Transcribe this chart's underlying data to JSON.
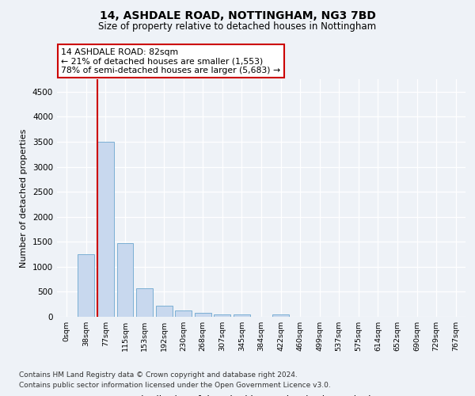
{
  "title": "14, ASHDALE ROAD, NOTTINGHAM, NG3 7BD",
  "subtitle": "Size of property relative to detached houses in Nottingham",
  "xlabel": "Distribution of detached houses by size in Nottingham",
  "ylabel": "Number of detached properties",
  "bar_labels": [
    "0sqm",
    "38sqm",
    "77sqm",
    "115sqm",
    "153sqm",
    "192sqm",
    "230sqm",
    "268sqm",
    "307sqm",
    "345sqm",
    "384sqm",
    "422sqm",
    "460sqm",
    "499sqm",
    "537sqm",
    "575sqm",
    "614sqm",
    "652sqm",
    "690sqm",
    "729sqm",
    "767sqm"
  ],
  "bar_values": [
    5,
    1250,
    3500,
    1470,
    570,
    220,
    120,
    85,
    55,
    40,
    0,
    40,
    0,
    0,
    0,
    0,
    0,
    0,
    0,
    0,
    0
  ],
  "bar_color": "#c8d8ee",
  "bar_edge_color": "#7bafd4",
  "ylim": [
    0,
    4750
  ],
  "yticks": [
    0,
    500,
    1000,
    1500,
    2000,
    2500,
    3000,
    3500,
    4000,
    4500
  ],
  "property_line_bar_index": 2,
  "annotation_text": "14 ASHDALE ROAD: 82sqm\n← 21% of detached houses are smaller (1,553)\n78% of semi-detached houses are larger (5,683) →",
  "annotation_box_color": "#ffffff",
  "annotation_box_edge_color": "#cc0000",
  "red_line_color": "#cc0000",
  "background_color": "#eef2f7",
  "footer_line1": "Contains HM Land Registry data © Crown copyright and database right 2024.",
  "footer_line2": "Contains public sector information licensed under the Open Government Licence v3.0."
}
